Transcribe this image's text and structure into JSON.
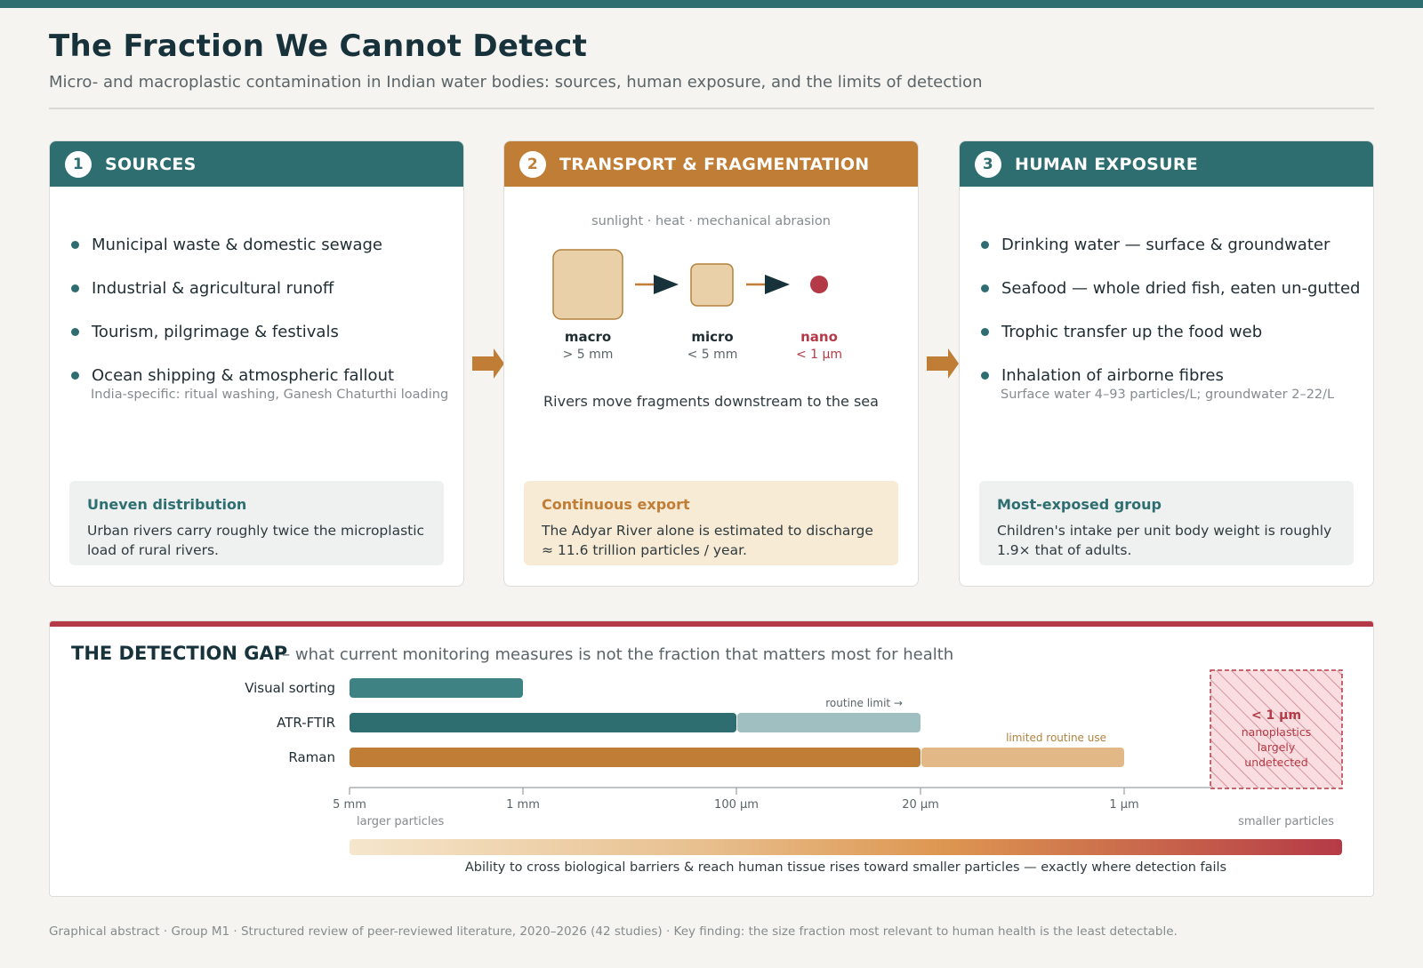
{
  "header": {
    "title": "The Fraction We Cannot Detect",
    "subtitle": "Micro- and macroplastic contamination in Indian water bodies: sources, human exposure, and the limits of detection"
  },
  "cards": {
    "sources": {
      "number": "1",
      "title": "SOURCES",
      "items": [
        "Municipal waste & domestic sewage",
        "Industrial & agricultural runoff",
        "Tourism, pilgrimage & festivals",
        "Ocean shipping & atmospheric fallout"
      ],
      "note": "India-specific: ritual washing, Ganesh Chaturthi loading",
      "box_title": "Uneven distribution",
      "box_text": "Urban rivers carry roughly twice the microplastic load of rural rivers."
    },
    "transport": {
      "number": "2",
      "title": "TRANSPORT & FRAGMENTATION",
      "caption": "sunlight · heat · mechanical abrasion",
      "stages": [
        {
          "name": "macro",
          "size": "> 5 mm"
        },
        {
          "name": "micro",
          "size": "< 5 mm"
        },
        {
          "name": "nano",
          "size": "< 1 µm"
        }
      ],
      "rivers": "Rivers move fragments downstream to the sea",
      "box_title": "Continuous export",
      "box_text": "The Adyar River alone is estimated to discharge ≈ 11.6 trillion particles / year."
    },
    "exposure": {
      "number": "3",
      "title": "HUMAN EXPOSURE",
      "items": [
        "Drinking water — surface & groundwater",
        "Seafood — whole dried fish, eaten un-gutted",
        "Trophic transfer up the food web",
        "Inhalation of airborne fibres"
      ],
      "note": "Surface water 4–93 particles/L; groundwater 2–22/L",
      "box_title": "Most-exposed group",
      "box_text": "Children's intake per unit body weight is roughly 1.9× that of adults."
    }
  },
  "detection": {
    "title": "THE DETECTION GAP",
    "subtitle": "– what current monitoring measures is not the fraction that matters most for health",
    "methods": [
      {
        "name": "Visual sorting",
        "routine_from": "5 mm",
        "routine_to": "1 mm",
        "extended_to": null,
        "extended_label": ""
      },
      {
        "name": "ATR-FTIR",
        "routine_from": "5 mm",
        "routine_to": "100 µm",
        "extended_to": "20 µm",
        "extended_label": "routine limit →"
      },
      {
        "name": "Raman",
        "routine_from": "5 mm",
        "routine_to": "20 µm",
        "extended_to": "1 µm",
        "extended_label": "limited routine use"
      }
    ],
    "ticks": [
      "5 mm",
      "1 mm",
      "100 µm",
      "20 µm",
      "1 µm"
    ],
    "left_end": "larger particles",
    "right_end": "smaller particles",
    "nano_box": {
      "line1": "< 1 µm",
      "line2": "nanoplastics",
      "line3": "largely",
      "line4": "undetected"
    },
    "gradient_caption": "Ability to cross biological barriers & reach human tissue rises toward smaller particles — exactly where detection fails",
    "colors": {
      "visual": "#3f8284",
      "ftir": "#2f6e70",
      "ftir_ext": "#9fbfc1",
      "raman": "#c07d36",
      "raman_ext": "#e3b887",
      "danger": "#b53a47"
    }
  },
  "footer": "Graphical abstract · Group M1 · Structured review of peer-reviewed literature, 2020–2026 (42 studies) · Key finding: the size fraction most relevant to human health is the least detectable."
}
